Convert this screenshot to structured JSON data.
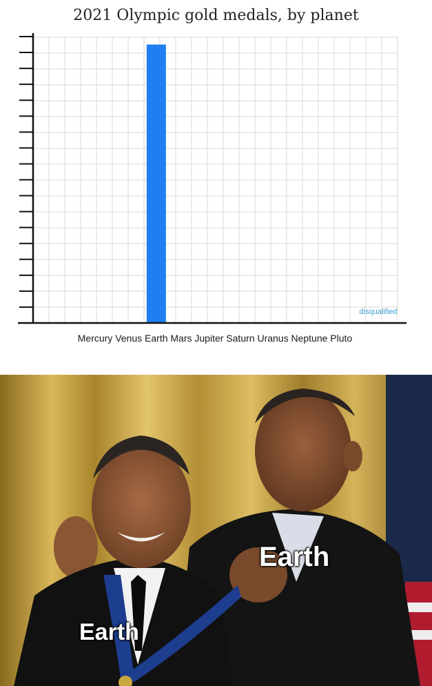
{
  "chart_data": {
    "type": "bar",
    "title": "2021 Olympic gold medals, by planet",
    "categories": [
      "Mercury",
      "Venus",
      "Earth",
      "Mars",
      "Jupiter",
      "Saturn",
      "Uranus",
      "Neptune",
      "Pluto"
    ],
    "values": [
      0,
      0,
      17.5,
      0,
      0,
      0,
      0,
      0,
      null
    ],
    "ylim": [
      0,
      18
    ],
    "grid": true,
    "bar_color": "#1f7ff0",
    "annotations": [
      {
        "category": "Pluto",
        "text": "disqualified",
        "color": "#3f9fd0"
      }
    ]
  },
  "meme": {
    "captions": {
      "giver": "Earth",
      "receiver": "Earth"
    }
  }
}
